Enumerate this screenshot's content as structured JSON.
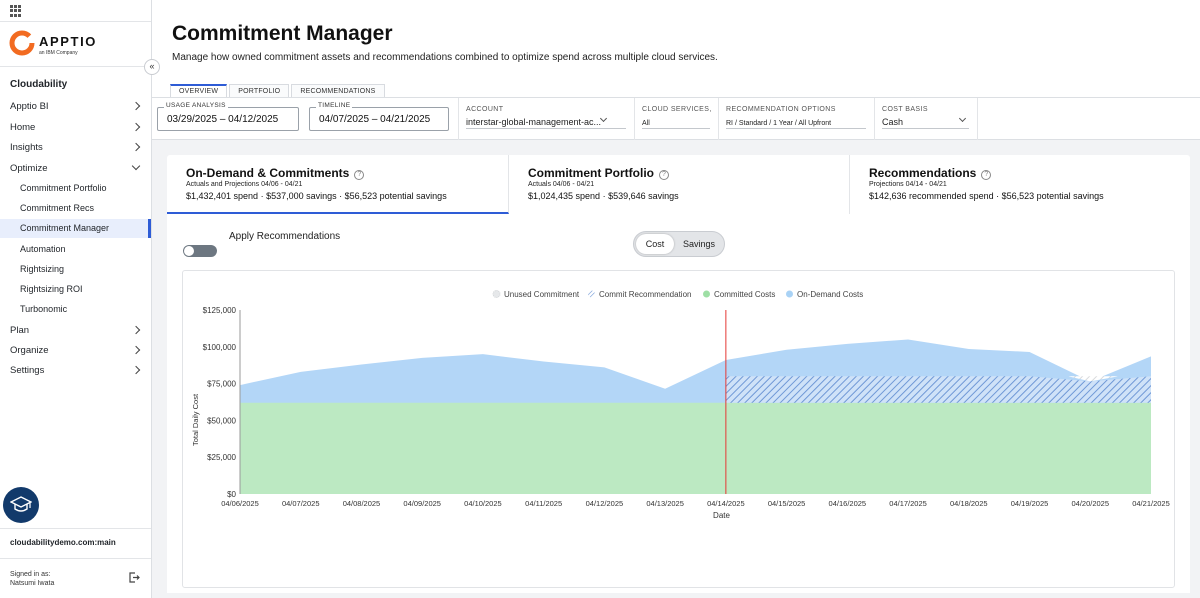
{
  "sidebar": {
    "brand": "APPTIO",
    "brand_sub": "an IBM Company",
    "product": "Cloudability",
    "items": [
      {
        "label": "Apptio BI",
        "chevron": "right"
      },
      {
        "label": "Home",
        "chevron": "right"
      },
      {
        "label": "Insights",
        "chevron": "right"
      },
      {
        "label": "Optimize",
        "chevron": "down"
      }
    ],
    "sub_items": [
      {
        "label": "Commitment Portfolio"
      },
      {
        "label": "Commitment Recs"
      },
      {
        "label": "Commitment Manager",
        "active": true
      },
      {
        "label": "Automation"
      },
      {
        "label": "Rightsizing"
      },
      {
        "label": "Rightsizing ROI"
      },
      {
        "label": "Turbonomic"
      }
    ],
    "items_after": [
      {
        "label": "Plan",
        "chevron": "right"
      },
      {
        "label": "Organize",
        "chevron": "right"
      },
      {
        "label": "Settings",
        "chevron": "right"
      }
    ],
    "org": "cloudabilitydemo.com:main",
    "signed_in_label": "Signed in as:",
    "user": "Natsumi Iwata"
  },
  "header": {
    "title": "Commitment Manager",
    "description": "Manage how owned commitment assets and recommendations combined to optimize spend across multiple cloud services."
  },
  "tabs": [
    {
      "label": "OVERVIEW",
      "active": true
    },
    {
      "label": "PORTFOLIO"
    },
    {
      "label": "RECOMMENDATIONS"
    }
  ],
  "filters": {
    "usage_analysis": {
      "label": "USAGE ANALYSIS",
      "value": "03/29/2025 – 04/12/2025"
    },
    "timeline": {
      "label": "TIMELINE",
      "value": "04/07/2025 – 04/21/2025"
    },
    "account": {
      "label": "ACCOUNT",
      "value": "interstar-global-management-ac..."
    },
    "cloud_services": {
      "label": "CLOUD SERVICES,",
      "value": "All"
    },
    "recommendation_options": {
      "label": "RECOMMENDATION OPTIONS",
      "value": "RI / Standard / 1 Year / All Upfront"
    },
    "cost_basis": {
      "label": "COST BASIS",
      "value": "Cash"
    }
  },
  "cards": [
    {
      "title": "On-Demand & Commitments",
      "sub": "Actuals and Projections 04/06 - 04/21",
      "stats": "$1,432,401 spend · $537,000 savings · $56,523 potential savings",
      "active": true
    },
    {
      "title": "Commitment Portfolio",
      "sub": "Actuals 04/06 - 04/21",
      "stats": "$1,024,435 spend · $539,646 savings"
    },
    {
      "title": "Recommendations",
      "sub": "Projections 04/14 - 04/21",
      "stats": "$142,636 recommended spend · $56,523 potential savings"
    }
  ],
  "controls": {
    "apply_label": "Apply Recommendations",
    "apply_on": false,
    "toggle_options": [
      "Cost",
      "Savings"
    ],
    "selected": "Cost"
  },
  "chart_data": {
    "type": "area",
    "xlabel": "Date",
    "ylabel": "Total Daily Cost",
    "ylim": [
      0,
      125000
    ],
    "y_ticks": [
      "$0",
      "$25,000",
      "$50,000",
      "$75,000",
      "$100,000",
      "$125,000"
    ],
    "categories": [
      "04/06/2025",
      "04/07/2025",
      "04/08/2025",
      "04/09/2025",
      "04/10/2025",
      "04/11/2025",
      "04/12/2025",
      "04/13/2025",
      "04/14/2025",
      "04/15/2025",
      "04/16/2025",
      "04/17/2025",
      "04/18/2025",
      "04/19/2025",
      "04/20/2025",
      "04/21/2025"
    ],
    "legend": [
      {
        "name": "Unused Commitment",
        "color": "#e6e8ea"
      },
      {
        "name": "Commit Recommendation",
        "color": "#7fa6dc"
      },
      {
        "name": "Committed Costs",
        "color": "#9edfa5"
      },
      {
        "name": "On-Demand Costs",
        "color": "#a9d2f5"
      }
    ],
    "legend_position": "top",
    "series": [
      {
        "name": "Committed Costs",
        "values": [
          62000,
          62000,
          62000,
          62000,
          62000,
          62000,
          62000,
          62000,
          62000,
          62000,
          62000,
          62000,
          62000,
          62000,
          62000,
          62000
        ]
      },
      {
        "name": "Total Cost",
        "values": [
          74000,
          83000,
          88000,
          92500,
          95000,
          90000,
          86000,
          71500,
          91000,
          98000,
          102000,
          105000,
          98500,
          96500,
          76500,
          93500
        ]
      },
      {
        "name": "Commit Recommendation",
        "values": [
          null,
          null,
          null,
          null,
          null,
          null,
          null,
          null,
          80000,
          80000,
          80000,
          80000,
          80000,
          80000,
          80000,
          80000
        ]
      }
    ],
    "marker_date": "04/14/2025",
    "marker_color": "#e53935"
  }
}
